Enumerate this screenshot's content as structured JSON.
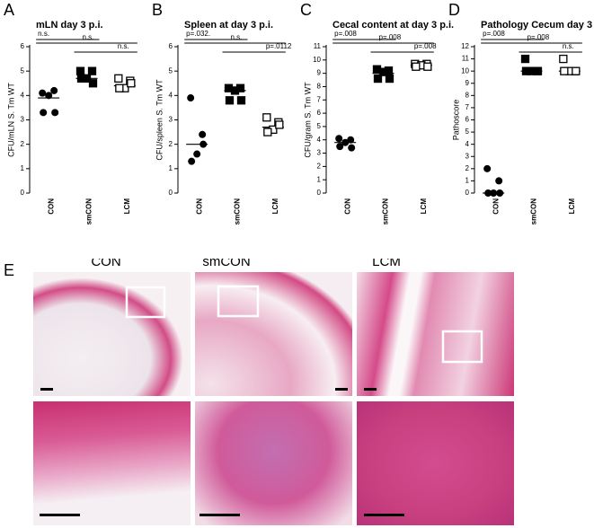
{
  "chart_data": [
    {
      "type": "dot",
      "panel": "A",
      "title": "mLN day 3 p.i.",
      "ylabel": "CFU/mLN S. Tm WT",
      "categories": [
        "CON",
        "smCON",
        "LCM"
      ],
      "values": [
        [
          4.1,
          4.2,
          4.0,
          3.3,
          3.3
        ],
        [
          5.0,
          5.0,
          4.7,
          4.7,
          4.5
        ],
        [
          4.7,
          4.6,
          4.3,
          4.3,
          4.5
        ]
      ],
      "medians": [
        3.9,
        4.7,
        4.4
      ],
      "markers": [
        "circle",
        "square",
        "square-open"
      ],
      "color": "#000000",
      "comparisons": [
        {
          "label": "n.s."
        },
        {
          "label": "n.s."
        },
        {
          "label": "n.s."
        }
      ],
      "ylim": [
        0,
        6
      ],
      "yticks": [
        0,
        1,
        2,
        3,
        4,
        5,
        6
      ]
    },
    {
      "type": "dot",
      "panel": "B",
      "title": "Spleen at day 3 p.i.",
      "ylabel": "CFU/spleen S. Tm WT",
      "categories": [
        "CON",
        "smCON",
        "LCM"
      ],
      "values": [
        [
          3.9,
          2.4,
          1.6,
          1.3,
          2.0
        ],
        [
          4.3,
          4.3,
          4.2,
          3.8,
          3.8
        ],
        [
          3.1,
          2.9,
          2.6,
          2.5,
          2.8
        ]
      ],
      "medians": [
        2.0,
        4.2,
        2.7
      ],
      "markers": [
        "circle",
        "square",
        "square-open"
      ],
      "color": "#000000",
      "comparisons": [
        {
          "label": "p=.032."
        },
        {
          "label": "n.s."
        },
        {
          "label": "p=.0112"
        }
      ],
      "ylim": [
        0,
        6
      ],
      "yticks": [
        0,
        1,
        2,
        3,
        4,
        5,
        6
      ]
    },
    {
      "type": "dot",
      "panel": "C",
      "title": "Cecal content at day 3 p.i.",
      "ylabel": "CFU/gram S. Tm WT",
      "categories": [
        "CON",
        "smCON",
        "LCM"
      ],
      "values": [
        [
          4.1,
          4.0,
          3.8,
          3.5,
          3.4
        ],
        [
          9.3,
          9.2,
          9.1,
          8.6,
          8.6
        ],
        [
          9.7,
          9.7,
          9.6,
          9.5,
          9.5
        ]
      ],
      "medians": [
        3.8,
        9.0,
        9.6
      ],
      "markers": [
        "circle",
        "square",
        "square-open"
      ],
      "color": "#000000",
      "comparisons": [
        {
          "label": "p=.008"
        },
        {
          "label": "p=.008"
        },
        {
          "label": "p=.008"
        }
      ],
      "ylim": [
        0,
        11
      ],
      "yticks": [
        0,
        1,
        2,
        3,
        4,
        5,
        6,
        7,
        8,
        9,
        10,
        11
      ]
    },
    {
      "type": "dot",
      "panel": "D",
      "title": "Pathology Cecum day 3 p.i.",
      "ylabel": "Pathoscore",
      "categories": [
        "CON",
        "smCON",
        "LCM"
      ],
      "values": [
        [
          2,
          1,
          0,
          0,
          0
        ],
        [
          11,
          10,
          10,
          10,
          10
        ],
        [
          11,
          10,
          10,
          10,
          10
        ]
      ],
      "medians": [
        0,
        10,
        10
      ],
      "markers": [
        "circle",
        "square",
        "square-open"
      ],
      "color": "#000000",
      "comparisons": [
        {
          "label": "p=.008"
        },
        {
          "label": "p=.008"
        },
        {
          "label": "n.s."
        }
      ],
      "ylim": [
        0,
        12
      ],
      "yticks": [
        0,
        1,
        2,
        3,
        4,
        5,
        6,
        7,
        8,
        9,
        10,
        11,
        12
      ]
    }
  ],
  "panel_e": {
    "label": "E",
    "columns": [
      "CON",
      "smCON",
      "LCM"
    ]
  }
}
